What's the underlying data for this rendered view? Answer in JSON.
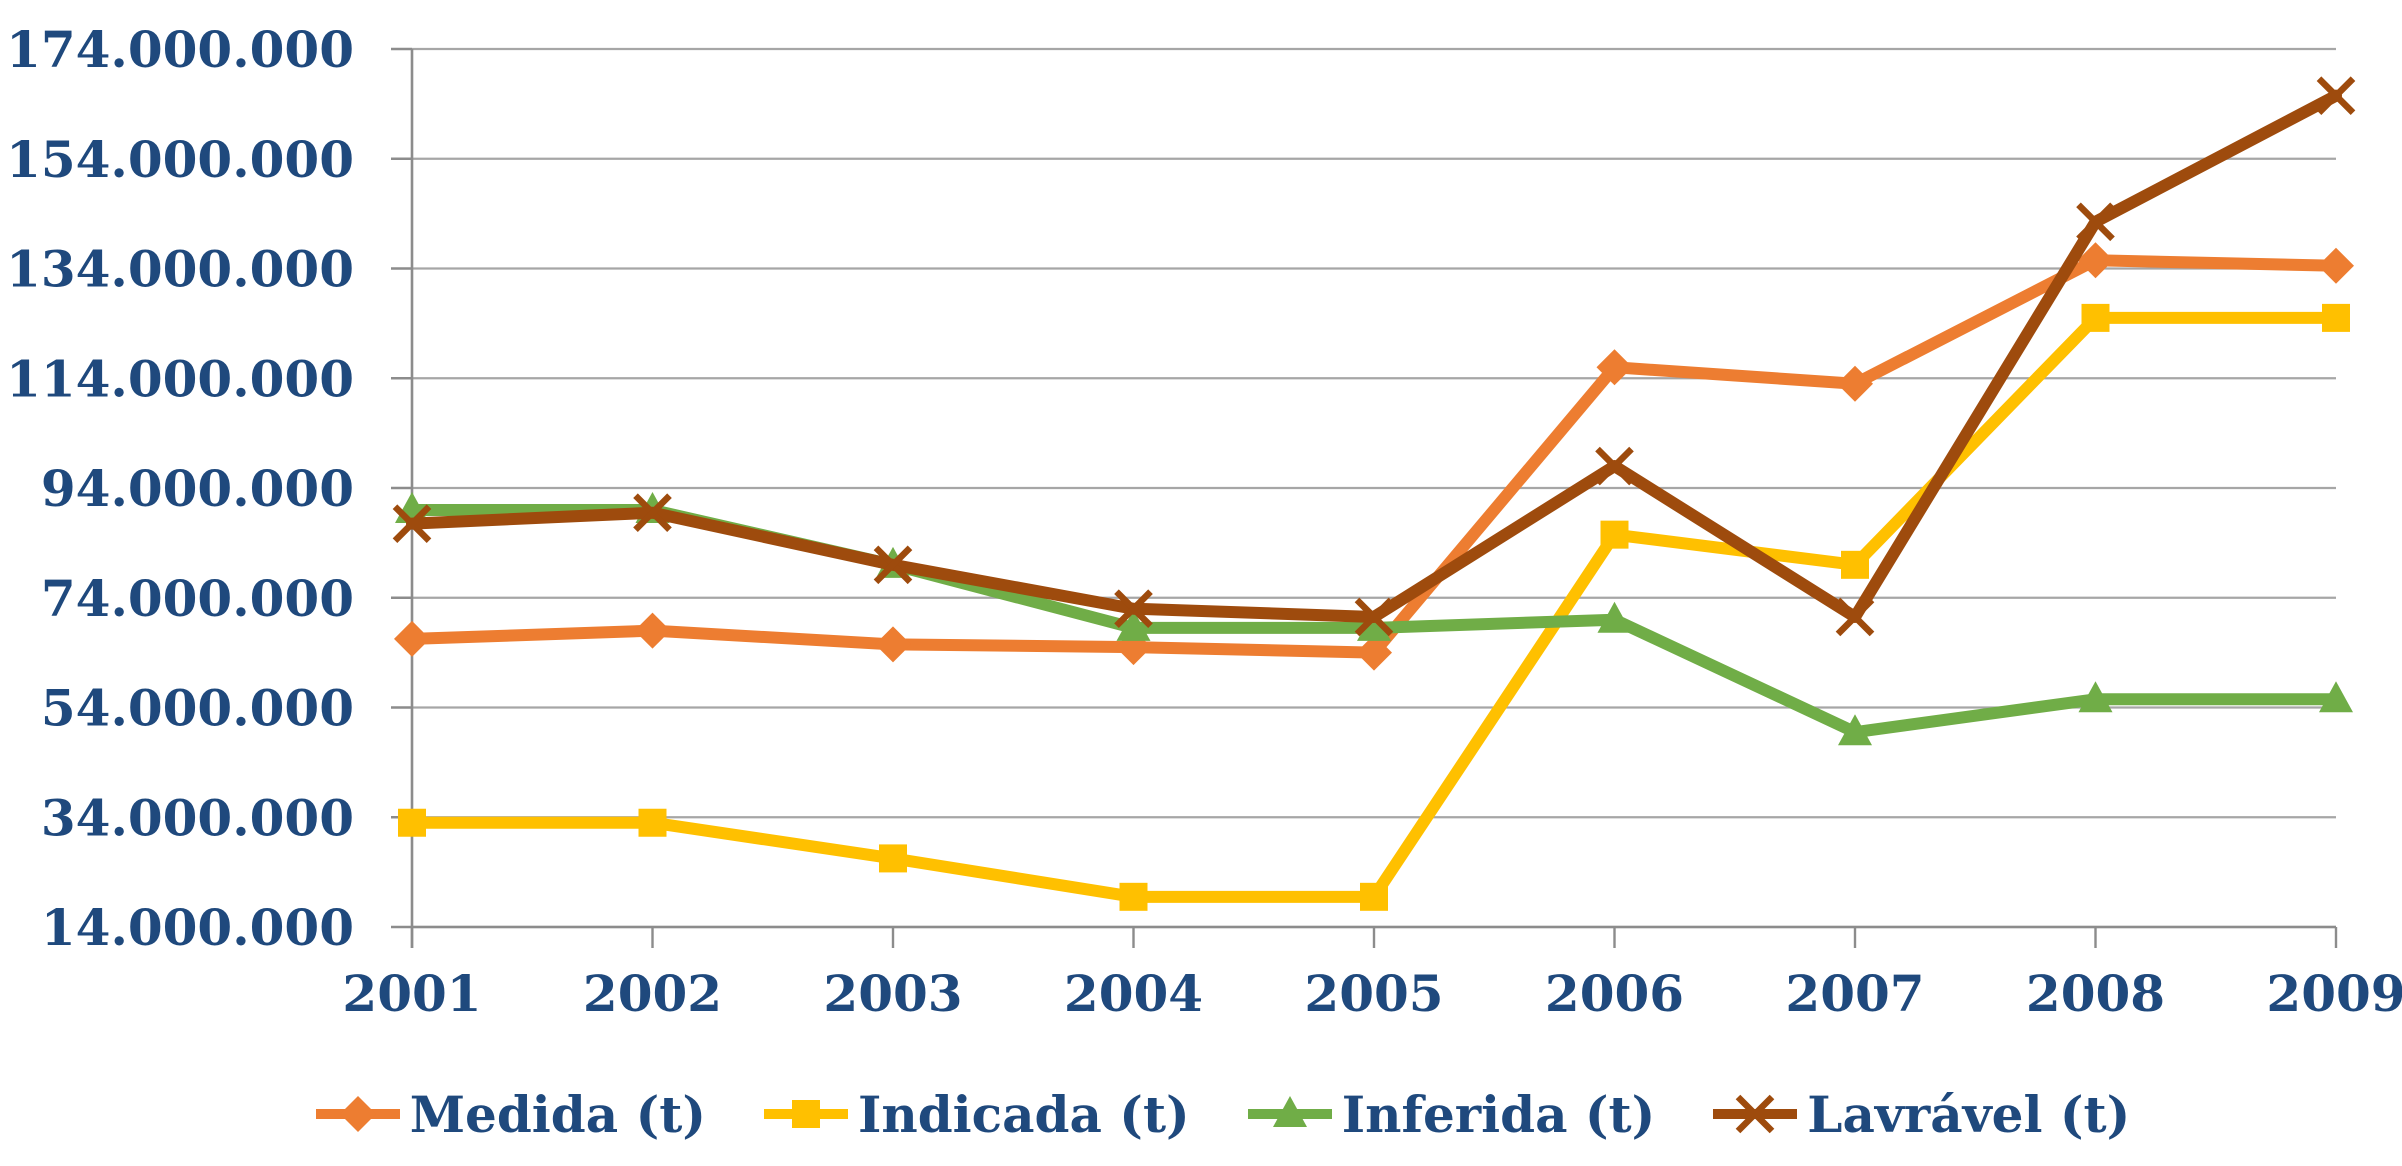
{
  "chart_data": {
    "type": "line",
    "title": "",
    "xlabel": "",
    "ylabel": "",
    "x": [
      2001,
      2002,
      2003,
      2004,
      2005,
      2006,
      2007,
      2008,
      2009
    ],
    "x_labels": [
      "2001",
      "2002",
      "2003",
      "2004",
      "2005",
      "2006",
      "2007",
      "2008",
      "2009"
    ],
    "ylim": [
      14000000,
      174000000
    ],
    "ytick_values": [
      14000000,
      34000000,
      54000000,
      74000000,
      94000000,
      114000000,
      134000000,
      154000000,
      174000000
    ],
    "ytick_labels": [
      "14.000.000",
      "34.000.000",
      "54.000.000",
      "74.000.000",
      "94.000.000",
      "114.000.000",
      "134.000.000",
      "154.000.000",
      "174.000.000"
    ],
    "grid": "horizontal",
    "legend_position": "bottom",
    "series": [
      {
        "name": "Medida (t)",
        "marker": "diamond",
        "color": "#ED7D31",
        "values": [
          66500000,
          68000000,
          65500000,
          65000000,
          64000000,
          116000000,
          113000000,
          135500000,
          134500000
        ]
      },
      {
        "name": "Indicada (t)",
        "marker": "square",
        "color": "#FFC000",
        "values": [
          33000000,
          33000000,
          26500000,
          19500000,
          19500000,
          85500000,
          80000000,
          125000000,
          125000000
        ]
      },
      {
        "name": "Inferida (t)",
        "marker": "triangle-up",
        "color": "#70AD47",
        "values": [
          90000000,
          90000000,
          80000000,
          68500000,
          68500000,
          70000000,
          49500000,
          55500000,
          55500000
        ]
      },
      {
        "name": "Lavrável (t)",
        "marker": "x-cross",
        "color": "#9E4B0D",
        "values": [
          87500000,
          89500000,
          80000000,
          72000000,
          70500000,
          98000000,
          70500000,
          142500000,
          165500000
        ]
      }
    ]
  },
  "colors": {
    "background": "#FFFFFF",
    "grid_line": "#A6A6A6",
    "axis_line": "#8C8C8C",
    "label_text": "#1F497D"
  }
}
